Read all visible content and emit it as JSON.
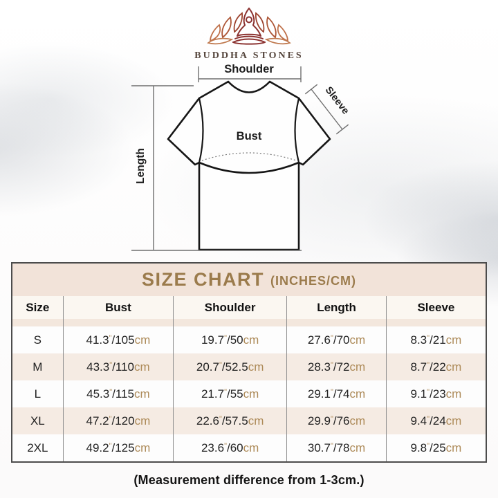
{
  "brand": {
    "name": "BUDDHA STONES",
    "logo_icon": "lotus-meditation-icon"
  },
  "diagram": {
    "labels": {
      "shoulder": "Shoulder",
      "sleeve": "Sleeve",
      "bust": "Bust",
      "length": "Length"
    }
  },
  "size_chart": {
    "title": "SIZE CHART",
    "subtitle": "(INCHES/CM)",
    "columns": [
      "Size",
      "Bust",
      "Shoulder",
      "Length",
      "Sleeve"
    ],
    "units": {
      "inch_mark": "\"",
      "separator": "/",
      "cm_label": "cm"
    },
    "rows": [
      {
        "size": "S",
        "values": [
          {
            "in": "41.3",
            "cm": "105"
          },
          {
            "in": "19.7",
            "cm": "50"
          },
          {
            "in": "27.6",
            "cm": "70"
          },
          {
            "in": "8.3",
            "cm": "21"
          }
        ]
      },
      {
        "size": "M",
        "values": [
          {
            "in": "43.3",
            "cm": "110"
          },
          {
            "in": "20.7",
            "cm": "52.5"
          },
          {
            "in": "28.3",
            "cm": "72"
          },
          {
            "in": "8.7",
            "cm": "22"
          }
        ]
      },
      {
        "size": "L",
        "values": [
          {
            "in": "45.3",
            "cm": "115"
          },
          {
            "in": "21.7",
            "cm": "55"
          },
          {
            "in": "29.1",
            "cm": "74"
          },
          {
            "in": "9.1",
            "cm": "23"
          }
        ]
      },
      {
        "size": "XL",
        "values": [
          {
            "in": "47.2",
            "cm": "120"
          },
          {
            "in": "22.6",
            "cm": "57.5"
          },
          {
            "in": "29.9",
            "cm": "76"
          },
          {
            "in": "9.4",
            "cm": "24"
          }
        ]
      },
      {
        "size": "2XL",
        "values": [
          {
            "in": "49.2",
            "cm": "125"
          },
          {
            "in": "23.6",
            "cm": "60"
          },
          {
            "in": "30.7",
            "cm": "78"
          },
          {
            "in": "9.8",
            "cm": "25"
          }
        ]
      }
    ],
    "colors": {
      "accent_gold": "#9b7b4c",
      "unit_tan": "#ad8a58",
      "title_band_bg": "#f2e3d9",
      "row_alt_bg": "#f5ebe3",
      "header_row_bg": "#fbf7f1",
      "panel_border": "#4c4c4c"
    }
  },
  "footer": {
    "note": "(Measurement difference from 1-3cm.)"
  }
}
